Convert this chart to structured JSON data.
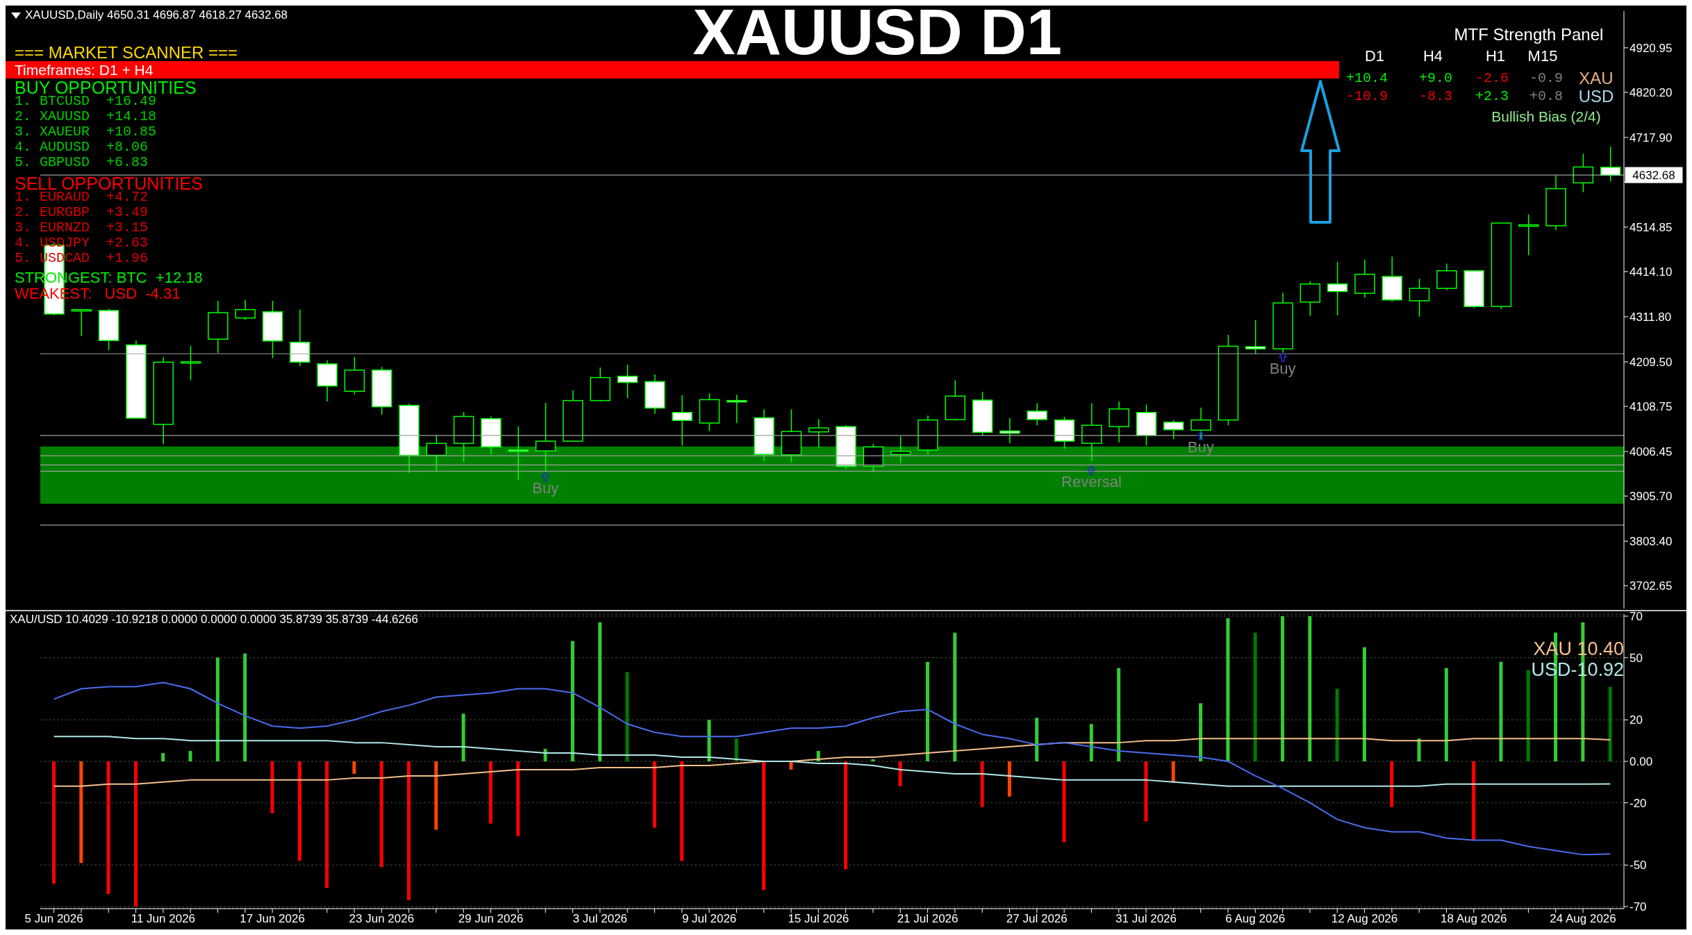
{
  "chart_data": [
    {
      "type": "candlestick",
      "title": "XAUUSD D1",
      "subtitle": "XAUUSD,Daily 4650.31 4696.87 4618.27 4632.68",
      "color": "#00ff00",
      "categories": [
        null,
        null,
        null,
        null,
        null,
        null,
        null,
        null,
        null,
        null,
        null,
        null,
        null,
        null,
        null,
        null,
        null,
        null,
        null,
        null,
        null,
        null,
        null,
        null,
        null,
        null,
        null,
        null,
        null,
        null,
        null,
        null,
        null,
        null,
        null,
        null,
        null,
        null,
        null,
        null,
        null,
        null,
        null,
        null,
        null,
        null,
        null,
        null,
        null,
        null,
        null,
        null,
        null,
        null,
        null,
        null,
        null,
        null
      ],
      "ohlc": [
        [
          4474,
          4480,
          4315,
          4318
        ],
        [
          4326,
          4330,
          4268,
          4328
        ],
        [
          4326,
          4330,
          4236,
          4258
        ],
        [
          4248,
          4258,
          4080,
          4082
        ],
        [
          4068,
          4220,
          4023,
          4209
        ],
        [
          4208,
          4246,
          4168,
          4210
        ],
        [
          4261,
          4348,
          4230,
          4321
        ],
        [
          4309,
          4350,
          4305,
          4328
        ],
        [
          4323,
          4348,
          4218,
          4257
        ],
        [
          4254,
          4328,
          4200,
          4209
        ],
        [
          4205,
          4213,
          4120,
          4155
        ],
        [
          4143,
          4221,
          4136,
          4191
        ],
        [
          4191,
          4198,
          4090,
          4108
        ],
        [
          4111,
          4115,
          3958,
          3998
        ],
        [
          3998,
          4044,
          3963,
          4025
        ],
        [
          4025,
          4096,
          3983,
          4086
        ],
        [
          4081,
          4086,
          4000,
          4017
        ],
        [
          4010,
          4063,
          3943,
          4007
        ],
        [
          4008,
          4117,
          3958,
          4030
        ],
        [
          4030,
          4145,
          4028,
          4122
        ],
        [
          4122,
          4197,
          4120,
          4174
        ],
        [
          4177,
          4203,
          4128,
          4163
        ],
        [
          4165,
          4181,
          4092,
          4105
        ],
        [
          4095,
          4134,
          4020,
          4077
        ],
        [
          4071,
          4138,
          4053,
          4124
        ],
        [
          4122,
          4135,
          4071,
          4119
        ],
        [
          4083,
          4102,
          3985,
          4000
        ],
        [
          3999,
          4102,
          3982,
          4052
        ],
        [
          4051,
          4080,
          4016,
          4060
        ],
        [
          4063,
          4066,
          3968,
          3973
        ],
        [
          3973,
          4024,
          3960,
          4017
        ],
        [
          4000,
          4041,
          3981,
          4007
        ],
        [
          4010,
          4088,
          3999,
          4078
        ],
        [
          4079,
          4168,
          4077,
          4132
        ],
        [
          4123,
          4142,
          4042,
          4050
        ],
        [
          4053,
          4082,
          4025,
          4048
        ],
        [
          4098,
          4116,
          4066,
          4079
        ],
        [
          4078,
          4085,
          4013,
          4030
        ],
        [
          4025,
          4116,
          3985,
          4066
        ],
        [
          4063,
          4120,
          4027,
          4103
        ],
        [
          4095,
          4113,
          4020,
          4043
        ],
        [
          4073,
          4078,
          4035,
          4056
        ],
        [
          4055,
          4106,
          4035,
          4078
        ],
        [
          4078,
          4271,
          4066,
          4245
        ],
        [
          4244,
          4304,
          4228,
          4239
        ],
        [
          4239,
          4366,
          4228,
          4343
        ],
        [
          4345,
          4392,
          4314,
          4386
        ],
        [
          4386,
          4436,
          4315,
          4369
        ],
        [
          4365,
          4441,
          4355,
          4408
        ],
        [
          4403,
          4448,
          4346,
          4350
        ],
        [
          4348,
          4398,
          4312,
          4376
        ],
        [
          4376,
          4432,
          4372,
          4416
        ],
        [
          4416,
          4416,
          4332,
          4335
        ],
        [
          4335,
          4524,
          4329,
          4524
        ],
        [
          4519,
          4544,
          4451,
          4520
        ],
        [
          4518,
          4632,
          4508,
          4602
        ],
        [
          4615,
          4681,
          4594,
          4651
        ],
        [
          4650.31,
          4696.87,
          4618.27,
          4632.68
        ]
      ],
      "ylim": [
        3651,
        5004
      ],
      "yticks": [
        3702.65,
        {
          "value": 3803.4,
          "label": "3803.40"
        },
        {
          "value": 3905.7,
          "label": "3905.70"
        },
        4006.45,
        4108.75,
        {
          "value": 4209.5,
          "label": "4209.50"
        },
        {
          "value": 4311.8,
          "label": "4311.80"
        },
        {
          "value": 4414.1,
          "label": "4414.10"
        },
        4514.85,
        {
          "value": 4617.15,
          "label": null
        },
        {
          "value": 4717.9,
          "label": "4717.90"
        },
        {
          "value": 4820.2,
          "label": "4820.20"
        },
        4920.95
      ],
      "tick_labels": "y",
      "bands": [
        {
          "axis": "y",
          "from": 3888,
          "to": 4018,
          "color": "#008000"
        }
      ],
      "ref_lines": [
        {
          "axis": "y",
          "value": 4632.68,
          "label": "4632.68",
          "color": "#c0c8d0"
        },
        {
          "axis": "y",
          "value": 4228,
          "color": "#a0a0a0"
        },
        {
          "axis": "y",
          "value": 4043,
          "color": "#a0a0a0"
        },
        {
          "axis": "y",
          "value": 3997,
          "color": "#a0a0a0"
        },
        {
          "axis": "y",
          "value": 3976,
          "color": "#a0a0a0"
        },
        {
          "axis": "y",
          "value": 3962,
          "color": "#a0a0a0"
        },
        {
          "axis": "y",
          "value": 3840,
          "color": "#a0a0a0"
        }
      ],
      "annotations": [
        "=== MARKET SCANNER ===",
        "Timeframes: D1 + H4",
        "BUY OPPORTUNITIES",
        "1. BTCUSD  +16.49",
        "2. XAUUSD  +14.18",
        "3. XAUEUR  +10.85",
        "4. AUDUSD  +8.06",
        "5. GBPUSD  +6.83",
        "SELL OPPORTUNITIES",
        "1. EURAUD  +4.72",
        "2. EURGBP  +3.49",
        "3. EURNZD  +3.15",
        "4. USDJPY  +2.63",
        "5. USDCAD  +1.96",
        "STRONGEST: BTC  +12.18",
        "WEAKEST:   USD  -4.31",
        "MTF Strength Panel",
        "D1",
        "H4",
        "H1",
        "M15",
        "+10.4",
        "+9.0",
        "-2.6",
        "-0.9",
        "XAU",
        "-10.9",
        "-8.3",
        "+2.3",
        "+0.8",
        "USD",
        "Bullish Bias (2/4)",
        "Buy",
        "Reversal",
        "Buy",
        "Buy"
      ]
    },
    {
      "type": "bar",
      "title": "XAU/USD 10.4029 -10.9218 0.0000 0.0000 0.0000 35.8739 35.8739 -44.6266",
      "categories": [
        "5 Jun 2026",
        null,
        null,
        null,
        "11 Jun 2026",
        null,
        null,
        null,
        "17 Jun 2026",
        null,
        null,
        null,
        "23 Jun 2026",
        null,
        null,
        null,
        "29 Jun 2026",
        null,
        null,
        null,
        "3 Jul 2026",
        null,
        null,
        null,
        "9 Jul 2026",
        null,
        null,
        null,
        "15 Jul 2026",
        null,
        null,
        null,
        "21 Jul 2026",
        null,
        null,
        null,
        "27 Jul 2026",
        null,
        null,
        null,
        "31 Jul 2026",
        null,
        null,
        null,
        "6 Aug 2026",
        null,
        null,
        null,
        "12 Aug 2026",
        null,
        null,
        null,
        "18 Aug 2026",
        null,
        null,
        null,
        "24 Aug 2026",
        null
      ],
      "series": [
        {
          "type": "bar",
          "values": [
            -59,
            -49,
            -64,
            -70,
            4,
            5,
            50,
            52,
            -25,
            -48,
            -61,
            -6,
            -51,
            -67,
            -33,
            23,
            -30,
            -36,
            6,
            58,
            67,
            43,
            -32,
            -48,
            20,
            11,
            -62,
            -4,
            5,
            -52,
            1,
            -12,
            48,
            62,
            -22,
            -17,
            21,
            -39,
            18,
            45,
            -29,
            -10,
            28,
            69,
            62,
            70,
            70,
            35,
            55,
            -22,
            11,
            45,
            -38,
            48,
            44,
            62,
            67,
            35.9
          ],
          "colors": [
            "#ff0000",
            "#ff4500",
            "#ff0000",
            "#ff0000",
            "#32cd32",
            "#32cd32",
            "#32cd32",
            "#32cd32",
            "#ff0000",
            "#ff0000",
            "#ff0000",
            "#ff4500",
            "#ff0000",
            "#ff0000",
            "#ff4500",
            "#32cd32",
            "#ff0000",
            "#ff0000",
            "#32cd32",
            "#32cd32",
            "#32cd32",
            "#007a00",
            "#ff0000",
            "#ff0000",
            "#32cd32",
            "#007a00",
            "#ff0000",
            "#ff4500",
            "#32cd32",
            "#ff0000",
            "#32cd32",
            "#ff0000",
            "#32cd32",
            "#32cd32",
            "#ff0000",
            "#ff4500",
            "#32cd32",
            "#ff0000",
            "#32cd32",
            "#32cd32",
            "#ff0000",
            "#ff4500",
            "#32cd32",
            "#32cd32",
            "#007a00",
            "#32cd32",
            "#32cd32",
            "#007a00",
            "#32cd32",
            "#ff0000",
            "#32cd32",
            "#32cd32",
            "#ff0000",
            "#32cd32",
            "#007a00",
            "#32cd32",
            "#32cd32",
            "#007a00"
          ]
        },
        {
          "type": "line",
          "color": "#f4c08a",
          "values": [
            -12,
            -12,
            -11,
            -11,
            -10,
            -9,
            -9,
            -9,
            -9,
            -9,
            -9,
            -8,
            -8,
            -7,
            -7,
            -6,
            -5,
            -4,
            -4,
            -4,
            -3,
            -3,
            -3,
            -2,
            -2,
            -1,
            0,
            0,
            1,
            2,
            2,
            3,
            4,
            5,
            6,
            7,
            8,
            9,
            9,
            9,
            10,
            10,
            11,
            11,
            11,
            11,
            11,
            11,
            11,
            10,
            10,
            10,
            11,
            11,
            11,
            11,
            11,
            10.4
          ]
        },
        {
          "type": "line",
          "color": "#b0e8e8",
          "values": [
            12,
            12,
            12,
            11,
            11,
            10,
            10,
            10,
            10,
            10,
            10,
            9,
            9,
            8,
            7,
            7,
            6,
            5,
            4,
            4,
            3,
            3,
            3,
            2,
            2,
            1,
            0,
            0,
            -1,
            -1,
            -2,
            -4,
            -5,
            -6,
            -6,
            -7,
            -8,
            -9,
            -9,
            -9,
            -9,
            -10,
            -11,
            -12,
            -12,
            -12,
            -12,
            -12,
            -12,
            -12,
            -12,
            -11,
            -11,
            -11,
            -11,
            -11,
            -11,
            -10.9
          ]
        },
        {
          "type": "line",
          "color": "#4a6cf0",
          "values": [
            30,
            35,
            36,
            36,
            38,
            35,
            28,
            22,
            17,
            16,
            17,
            20,
            24,
            27,
            31,
            32,
            33,
            35,
            35,
            33,
            26,
            18,
            14,
            12,
            12,
            12,
            14,
            16,
            16,
            17,
            21,
            24,
            25,
            18,
            13,
            11,
            8,
            9,
            7,
            5,
            4,
            3,
            2,
            0,
            -7,
            -13,
            -20,
            -28,
            -32,
            -34,
            -34,
            -37,
            -38,
            -38,
            -41,
            -43,
            -45,
            -44.6
          ]
        }
      ],
      "ylim": [
        -71,
        71
      ],
      "yticks": [
        70,
        50,
        20,
        {
          "value": 0,
          "label": "0.00"
        },
        -20,
        -50,
        -70
      ],
      "grid": "y",
      "annotations": [
        "XAU 10.40",
        "USD-10.92"
      ]
    }
  ]
}
